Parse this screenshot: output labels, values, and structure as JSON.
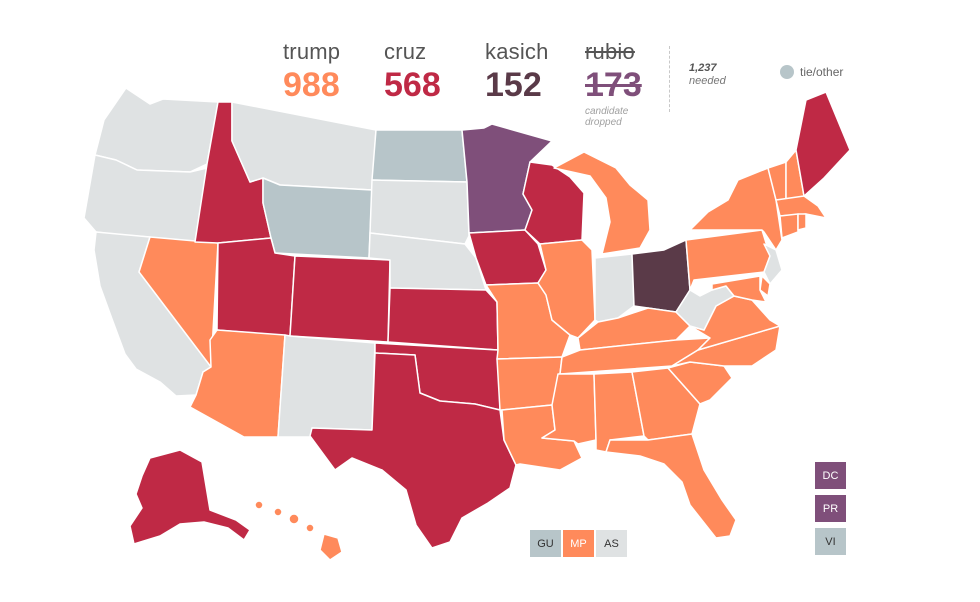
{
  "candidates": [
    {
      "id": "trump",
      "name": "trump",
      "count": "988",
      "color": "#ff8a5b",
      "dropped": false
    },
    {
      "id": "cruz",
      "name": "cruz",
      "count": "568",
      "color": "#bf2945",
      "dropped": false
    },
    {
      "id": "kasich",
      "name": "kasich",
      "count": "152",
      "color": "#5a3a48",
      "dropped": false
    },
    {
      "id": "rubio",
      "name": "rubio",
      "count": "173",
      "color": "#7f4f7a",
      "dropped": true,
      "note": "candidate dropped"
    }
  ],
  "needed": {
    "number": "1,237",
    "label": "needed"
  },
  "legend": {
    "tie_label": "tie/other",
    "tie_color": "#b7c5c9"
  },
  "colors": {
    "trump": "#ff8a5b",
    "cruz": "#bf2945",
    "kasich": "#5a3a48",
    "rubio": "#7f4f7a",
    "tie": "#b7c5c9",
    "pending": "#dfe2e3"
  },
  "states": {
    "WA": "pending",
    "OR": "pending",
    "CA": "pending",
    "NV": "trump",
    "ID": "cruz",
    "MT": "pending",
    "WY": "tie",
    "UT": "cruz",
    "AZ": "trump",
    "CO": "cruz",
    "NM": "pending",
    "ND": "tie",
    "SD": "pending",
    "NE": "pending",
    "KS": "cruz",
    "OK": "cruz",
    "TX": "cruz",
    "MN": "rubio",
    "IA": "cruz",
    "MO": "trump",
    "AR": "trump",
    "LA": "trump",
    "WI": "cruz",
    "IL": "trump",
    "MI": "trump",
    "IN": "pending",
    "OH": "kasich",
    "KY": "trump",
    "TN": "trump",
    "MS": "trump",
    "AL": "trump",
    "GA": "trump",
    "FL": "trump",
    "SC": "trump",
    "NC": "trump",
    "VA": "trump",
    "WV": "pending",
    "PA": "trump",
    "NY": "trump",
    "NJ": "pending",
    "DE": "trump",
    "MD": "trump",
    "ME": "cruz",
    "NH": "trump",
    "VT": "trump",
    "MA": "trump",
    "CT": "trump",
    "RI": "trump",
    "AK": "cruz",
    "HI": "trump"
  },
  "territories": [
    {
      "code": "GU",
      "result": "tie"
    },
    {
      "code": "MP",
      "result": "trump"
    },
    {
      "code": "AS",
      "result": "pending"
    },
    {
      "code": "DC",
      "result": "rubio"
    },
    {
      "code": "PR",
      "result": "rubio"
    },
    {
      "code": "VI",
      "result": "tie"
    }
  ]
}
